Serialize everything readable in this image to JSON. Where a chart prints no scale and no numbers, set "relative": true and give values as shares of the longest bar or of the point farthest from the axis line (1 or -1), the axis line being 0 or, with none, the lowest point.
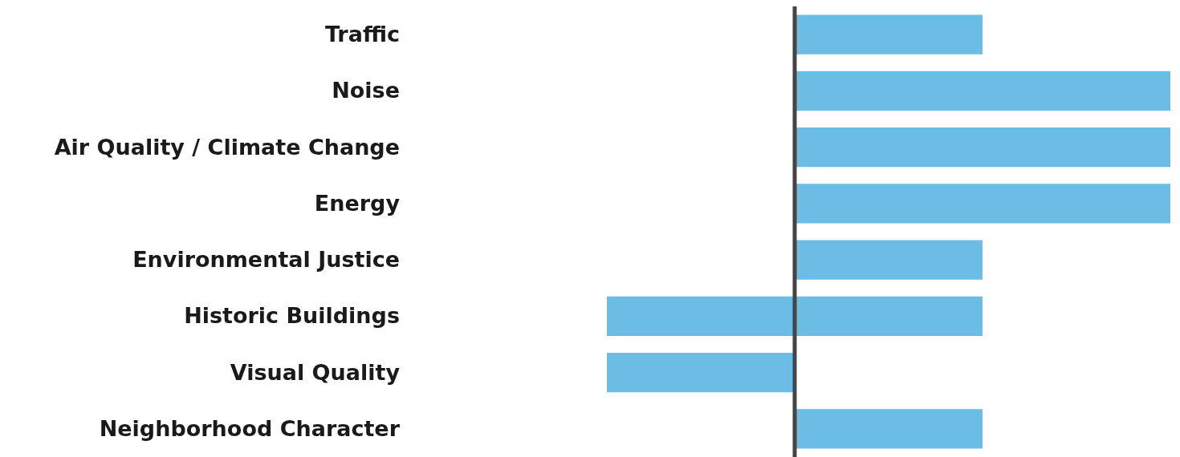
{
  "chart_data": {
    "type": "bar",
    "orientation": "horizontal",
    "stacked": true,
    "relative": true,
    "categories": [
      "Traffic",
      "Noise",
      "Air Quality / Climate  Change",
      "Energy",
      "Environmental Justice",
      "Historic Buildings",
      "Visual Quality",
      "Neighborhood Character"
    ],
    "series": [
      {
        "color": "#6bbde6",
        "values": [
          0.5,
          0.5,
          0.5,
          0.5,
          0.5,
          0.5,
          null,
          0.5
        ]
      },
      {
        "color": "#6bbde6",
        "values": [
          null,
          0.5,
          0.5,
          0.5,
          null,
          -0.5,
          -0.5,
          null
        ]
      }
    ]
  }
}
